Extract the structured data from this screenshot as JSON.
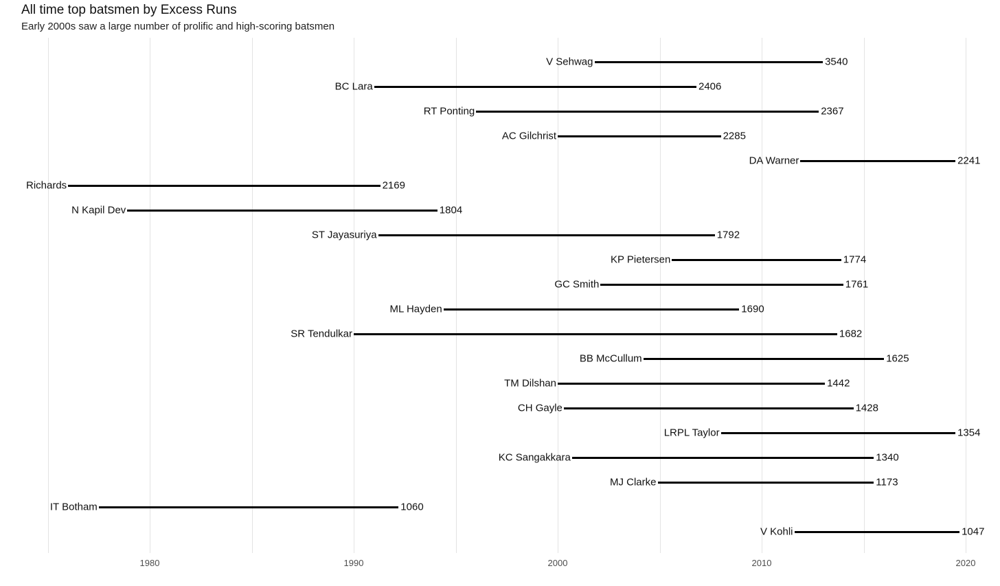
{
  "header": {
    "title": "All time top batsmen by Excess Runs",
    "subtitle": "Early 2000s saw a large number of prolific and high-scoring batsmen"
  },
  "colors": {
    "background": "#ffffff",
    "segment": "#000000",
    "grid": "#e3e3e3",
    "title_text": "#111111",
    "subtitle_text": "#222222",
    "tick_text": "#4d4d4d",
    "label_text": "#111111"
  },
  "chart_data": {
    "type": "line",
    "variant": "horizontal-career-span-segments",
    "title": "All time top batsmen by Excess Runs",
    "subtitle": "Early 2000s saw a large number of prolific and high-scoring batsmen",
    "xlabel": "",
    "ylabel": "",
    "value_metric": "Excess Runs",
    "x_axis": {
      "tick_labels": [
        "1980",
        "1990",
        "2000",
        "2010",
        "2020"
      ],
      "tick_years": [
        1980,
        1990,
        2000,
        2010,
        2020
      ],
      "gridline_years": [
        1975,
        1980,
        1985,
        1990,
        1995,
        2000,
        2005,
        2010,
        2015,
        2020
      ],
      "range": [
        1974.9,
        2020.6
      ],
      "grid": "on"
    },
    "legend": "none",
    "series": [
      {
        "name": "V Sehwag",
        "start_year": 2001.8,
        "end_year": 2013.0,
        "excess_runs": 3540
      },
      {
        "name": "BC Lara",
        "start_year": 1991.0,
        "end_year": 2006.8,
        "excess_runs": 2406
      },
      {
        "name": "RT Ponting",
        "start_year": 1996.0,
        "end_year": 2012.8,
        "excess_runs": 2367
      },
      {
        "name": "AC Gilchrist",
        "start_year": 2000.0,
        "end_year": 2008.0,
        "excess_runs": 2285
      },
      {
        "name": "DA Warner",
        "start_year": 2011.9,
        "end_year": 2019.5,
        "excess_runs": 2241
      },
      {
        "name": "Richards",
        "start_year": 1976.0,
        "end_year": 1991.3,
        "excess_runs": 2169
      },
      {
        "name": "N Kapil Dev",
        "start_year": 1978.9,
        "end_year": 1994.1,
        "excess_runs": 1804
      },
      {
        "name": "ST Jayasuriya",
        "start_year": 1991.2,
        "end_year": 2007.7,
        "excess_runs": 1792
      },
      {
        "name": "KP Pietersen",
        "start_year": 2005.6,
        "end_year": 2013.9,
        "excess_runs": 1774
      },
      {
        "name": "GC Smith",
        "start_year": 2002.1,
        "end_year": 2014.0,
        "excess_runs": 1761
      },
      {
        "name": "ML Hayden",
        "start_year": 1994.4,
        "end_year": 2008.9,
        "excess_runs": 1690
      },
      {
        "name": "SR Tendulkar",
        "start_year": 1990.0,
        "end_year": 2013.7,
        "excess_runs": 1682
      },
      {
        "name": "BB McCullum",
        "start_year": 2004.2,
        "end_year": 2016.0,
        "excess_runs": 1625
      },
      {
        "name": "TM Dilshan",
        "start_year": 2000.0,
        "end_year": 2013.1,
        "excess_runs": 1442
      },
      {
        "name": "CH Gayle",
        "start_year": 2000.3,
        "end_year": 2014.5,
        "excess_runs": 1428
      },
      {
        "name": "LRPL Taylor",
        "start_year": 2008.0,
        "end_year": 2019.5,
        "excess_runs": 1354
      },
      {
        "name": "KC Sangakkara",
        "start_year": 2000.7,
        "end_year": 2015.5,
        "excess_runs": 1340
      },
      {
        "name": "MJ Clarke",
        "start_year": 2004.9,
        "end_year": 2015.5,
        "excess_runs": 1173
      },
      {
        "name": "IT Botham",
        "start_year": 1977.5,
        "end_year": 1992.2,
        "excess_runs": 1060
      },
      {
        "name": "V Kohli",
        "start_year": 2011.6,
        "end_year": 2019.7,
        "excess_runs": 1047
      }
    ]
  }
}
